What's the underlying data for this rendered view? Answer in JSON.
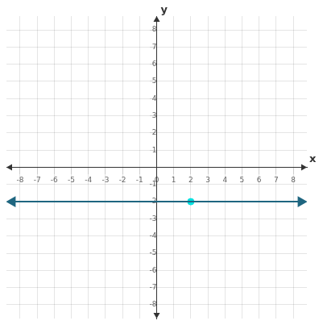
{
  "chart_data": {
    "type": "line",
    "xlabel": "x",
    "ylabel": "y",
    "xlim": [
      -8.8,
      8.8
    ],
    "ylim": [
      -8.8,
      8.8
    ],
    "xticks": [
      -8,
      -7,
      -6,
      -5,
      -4,
      -3,
      -2,
      -1,
      0,
      1,
      2,
      3,
      4,
      5,
      6,
      7,
      8
    ],
    "yticks": [
      -8,
      -7,
      -6,
      -5,
      -4,
      -3,
      -2,
      -1,
      0,
      1,
      2,
      3,
      4,
      5,
      6,
      7,
      8
    ],
    "grid": true,
    "series": [
      {
        "type": "line",
        "color": "#1f6680",
        "marker": "arrow",
        "x": [
          -8.45,
          8.45
        ],
        "values": [
          -2,
          -2
        ]
      },
      {
        "type": "scatter",
        "color": "#00e0e0",
        "marker": "circle",
        "x": [
          2
        ],
        "values": [
          -2
        ]
      }
    ]
  }
}
